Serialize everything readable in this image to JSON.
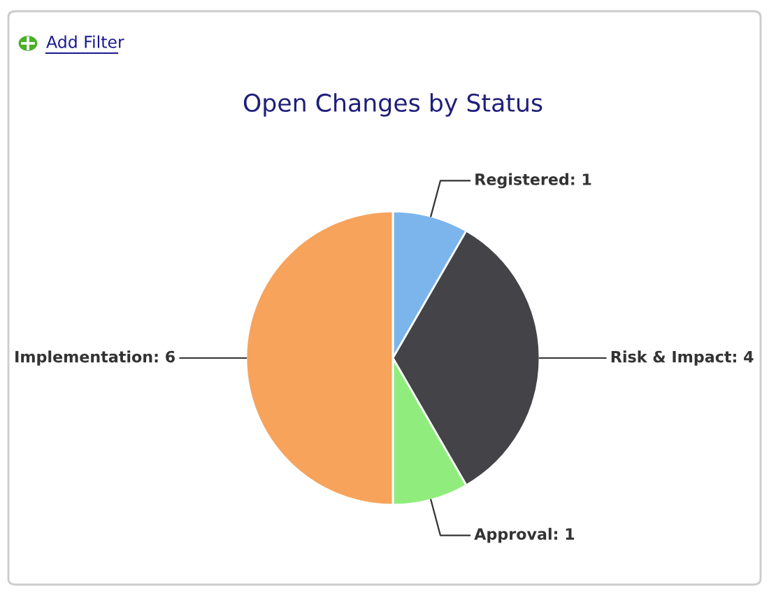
{
  "chart_data": {
    "type": "pie",
    "title": "Open Changes by Status",
    "categories": [
      "Registered",
      "Risk & Impact",
      "Approval",
      "Implementation"
    ],
    "values": [
      1,
      4,
      1,
      6
    ],
    "colors": [
      "#7cb5ec",
      "#434348",
      "#90ed7d",
      "#f7a35c"
    ],
    "value_labels": [
      ": 1",
      ": 4",
      ": 1",
      ": 6"
    ],
    "annotations": [
      "Add Filter"
    ]
  }
}
